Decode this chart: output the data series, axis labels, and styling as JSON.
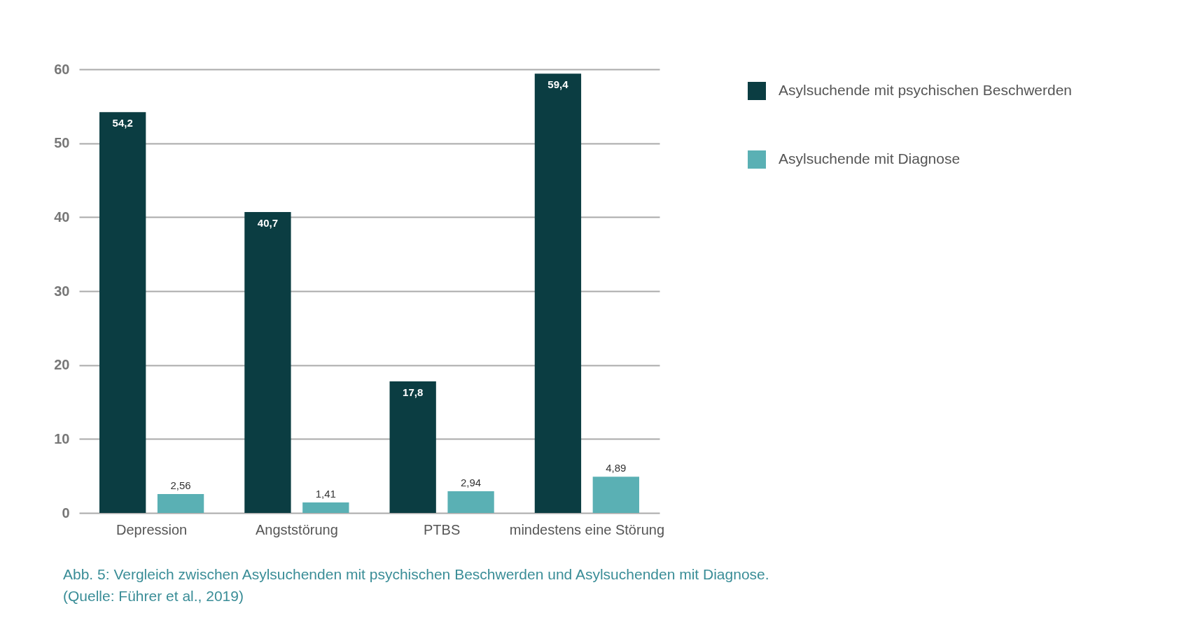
{
  "chart_data": {
    "type": "bar",
    "categories": [
      "Depression",
      "Angststörung",
      "PTBS",
      "mindestens eine Störung"
    ],
    "series": [
      {
        "name": "Asylsuchende mit psychischen Beschwerden",
        "color": "#0b3d42",
        "values": [
          54.2,
          40.7,
          17.8,
          59.4
        ],
        "value_labels": [
          "54,2",
          "40,7",
          "17,8",
          "59,4"
        ]
      },
      {
        "name": "Asylsuchende mit Diagnose",
        "color": "#5ab0b4",
        "values": [
          2.56,
          1.41,
          2.94,
          4.89
        ],
        "value_labels": [
          "2,56",
          "1,41",
          "2,94",
          "4,89"
        ]
      }
    ],
    "ylim": [
      0,
      60
    ],
    "yticks": [
      0,
      10,
      20,
      30,
      40,
      50,
      60
    ],
    "grid": "y",
    "legend": "top right",
    "annotations": [
      "Abb.  5:  Vergleich zwischen Asylsuchenden mit psychischen Beschwerden und Asylsuchenden mit Diagnose.",
      "(Quelle: Führer et al., 2019)"
    ]
  }
}
